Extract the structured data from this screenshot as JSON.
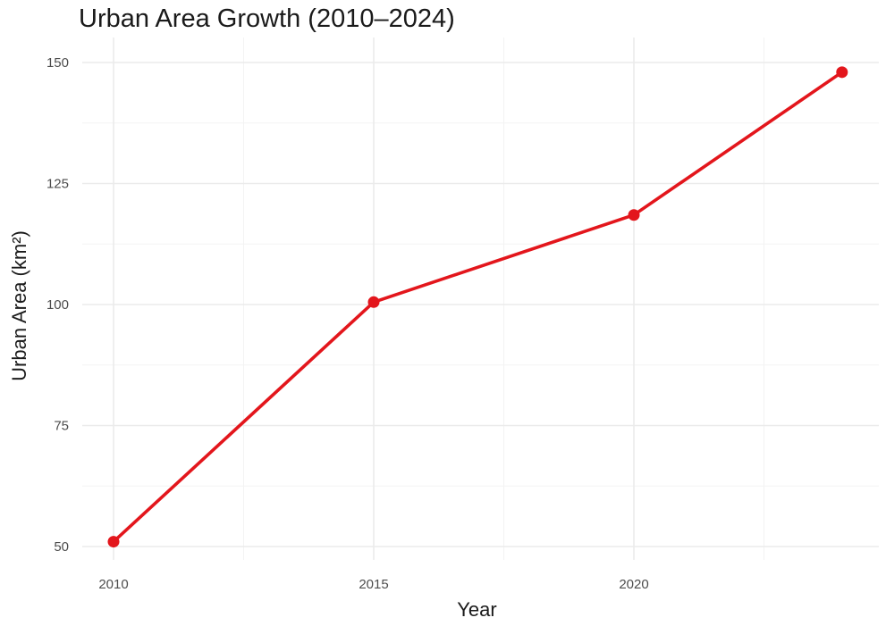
{
  "chart_data": {
    "type": "line",
    "title": "Urban Area Growth (2010–2024)",
    "xlabel": "Year",
    "ylabel": "Urban Area (km²)",
    "x": [
      2010,
      2015,
      2020,
      2024
    ],
    "series": [
      {
        "values": [
          51,
          100.5,
          118.5,
          148
        ]
      }
    ],
    "xlim": [
      2010,
      2024
    ],
    "ylim": [
      50,
      150
    ],
    "xticks": [
      2010,
      2015,
      2020
    ],
    "yticks": [
      50,
      75,
      100,
      125,
      150
    ],
    "x_tick_labels": [
      "2010",
      "2015",
      "2020"
    ],
    "y_tick_labels": [
      "50",
      "75",
      "100",
      "125",
      "150"
    ],
    "grid": true,
    "legend": "none",
    "line_color": "#e3161c",
    "background": "#ffffff"
  }
}
